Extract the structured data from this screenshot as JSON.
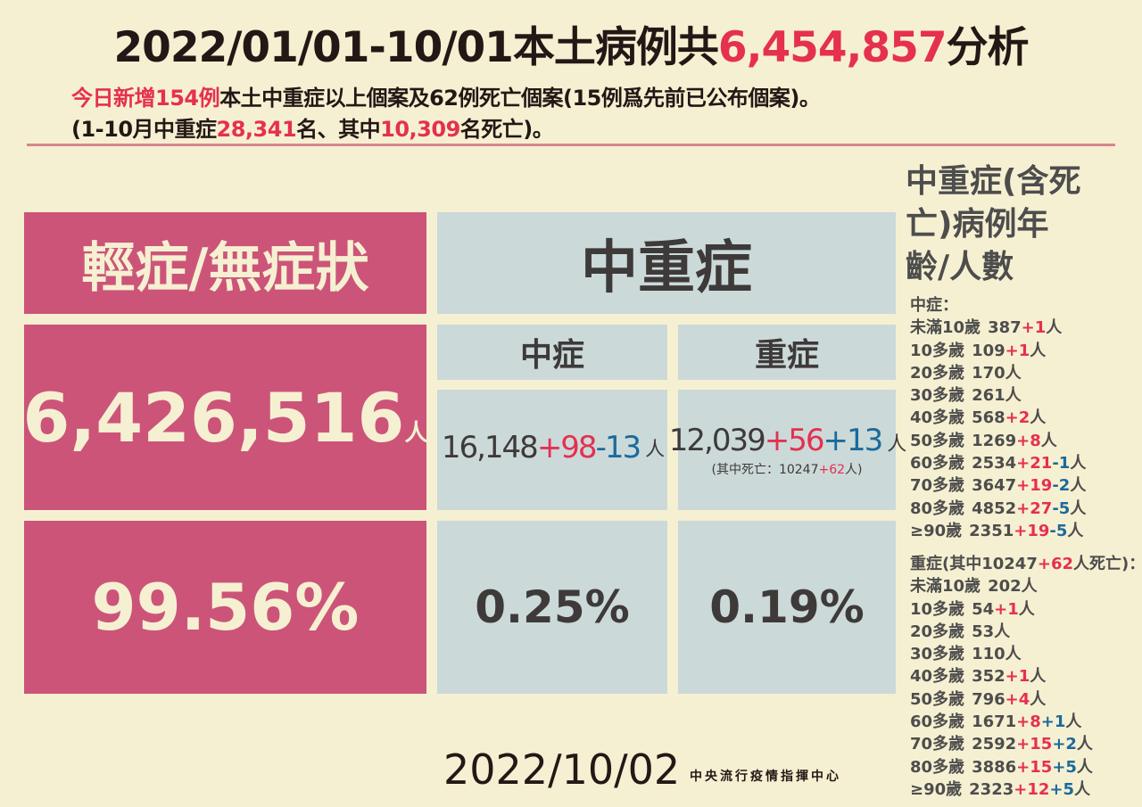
{
  "title": {
    "prefix": "2022/01/01-10/01本土病例共",
    "total": "6,454,857",
    "suffix": "分析"
  },
  "summary": {
    "line1": {
      "a": "今日新增154例",
      "b": "本土中重症以上個案及62例死亡個案(15例爲先前已公布個案)。"
    },
    "line2": {
      "a": "(1-10月中重症",
      "b": "28,341",
      "c": "名、其中",
      "d": "10,309",
      "e": "名死亡)。"
    }
  },
  "mild": {
    "header": "輕症/無症狀",
    "count": "6,426,516",
    "unit": "人",
    "percent": "99.56%"
  },
  "severe": {
    "header": "中重症",
    "moderate": {
      "label": "中症",
      "base": "16,148",
      "add": "+98",
      "adj": "-13",
      "unit": "人",
      "percent": "0.25%"
    },
    "critical": {
      "label": "重症",
      "base": "12,039",
      "add": "+56",
      "adj": "+13",
      "unit": "人",
      "percent": "0.19%",
      "death_note": {
        "prefix": "(其中死亡：10247",
        "add": "+62",
        "suffix": "人)"
      }
    }
  },
  "age_panel": {
    "title": "中重症(含死亡)病例年齡/人數",
    "moderate": {
      "heading": "中症：",
      "rows": [
        {
          "age": "未滿10歲",
          "base": "387",
          "add": "+1",
          "adj": ""
        },
        {
          "age": "10多歲",
          "base": "109",
          "add": "+1",
          "adj": ""
        },
        {
          "age": "20多歲",
          "base": "170",
          "add": "",
          "adj": ""
        },
        {
          "age": "30多歲",
          "base": "261",
          "add": "",
          "adj": ""
        },
        {
          "age": "40多歲",
          "base": "568",
          "add": "+2",
          "adj": ""
        },
        {
          "age": "50多歲",
          "base": "1269",
          "add": "+8",
          "adj": ""
        },
        {
          "age": "60多歲",
          "base": "2534",
          "add": "+21",
          "adj": "-1"
        },
        {
          "age": "70多歲",
          "base": "3647",
          "add": "+19",
          "adj": "-2"
        },
        {
          "age": "80多歲",
          "base": "4852",
          "add": "+27",
          "adj": "-5"
        },
        {
          "age": "≥90歲",
          "base": "2351",
          "add": "+19",
          "adj": "-5"
        }
      ]
    },
    "critical": {
      "heading_prefix": "重症(其中10247",
      "heading_add": "+62",
      "heading_suffix": "人死亡)：",
      "rows": [
        {
          "age": "未滿10歲",
          "base": "202",
          "add": "",
          "adj": ""
        },
        {
          "age": "10多歲",
          "base": "54",
          "add": "+1",
          "adj": ""
        },
        {
          "age": "20多歲",
          "base": "53",
          "add": "",
          "adj": ""
        },
        {
          "age": "30多歲",
          "base": "110",
          "add": "",
          "adj": ""
        },
        {
          "age": "40多歲",
          "base": "352",
          "add": "+1",
          "adj": ""
        },
        {
          "age": "50多歲",
          "base": "796",
          "add": "+4",
          "adj": ""
        },
        {
          "age": "60多歲",
          "base": "1671",
          "add": "+8",
          "adj": "+1"
        },
        {
          "age": "70多歲",
          "base": "2592",
          "add": "+15",
          "adj": "+2"
        },
        {
          "age": "80多歲",
          "base": "3886",
          "add": "+15",
          "adj": "+5"
        },
        {
          "age": "≥90歲",
          "base": "2323",
          "add": "+12",
          "adj": "+5"
        }
      ]
    },
    "unit": "人"
  },
  "footer": {
    "date": "2022/10/02",
    "org": "中央流行疫情指揮中心"
  },
  "colors": {
    "background": "#f6f0d2",
    "pink": "#cc5479",
    "grey": "#cbd9d9",
    "red": "#e5304f",
    "blue": "#1b6a9c"
  }
}
